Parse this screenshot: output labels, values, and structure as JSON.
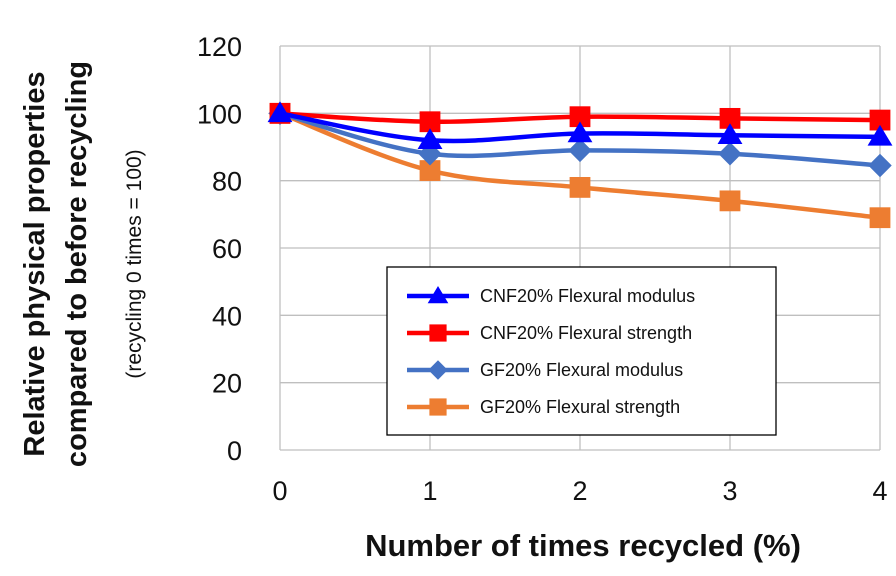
{
  "chart_data": {
    "type": "line",
    "x": [
      0,
      1,
      2,
      3,
      4
    ],
    "xlabel": "Number of times recycled (%)",
    "ylabel_line1": "Relative physical properties",
    "ylabel_line2": "compared to before recycling",
    "ylabel_note": "(recycling 0 times = 100)",
    "ylim": [
      0,
      120
    ],
    "yticks": [
      0,
      20,
      40,
      60,
      80,
      100,
      120
    ],
    "xlim": [
      0,
      4
    ],
    "xticks": [
      0,
      1,
      2,
      3,
      4
    ],
    "grid": true,
    "legend_position": "lower-right inside plot",
    "series": [
      {
        "name": "CNF20% Flexural modulus",
        "values": [
          100,
          92,
          94,
          93.5,
          93
        ],
        "color": "#0000ff",
        "marker": "triangle"
      },
      {
        "name": "CNF20% Flexural strength",
        "values": [
          100,
          97.5,
          99,
          98.5,
          98
        ],
        "color": "#ff0000",
        "marker": "square"
      },
      {
        "name": "GF20% Flexural modulus",
        "values": [
          100,
          88,
          89,
          88,
          84.5
        ],
        "color": "#4472c4",
        "marker": "diamond"
      },
      {
        "name": "GF20% Flexural strength",
        "values": [
          100,
          83,
          78,
          74,
          69
        ],
        "color": "#ed7d31",
        "marker": "square"
      }
    ]
  }
}
